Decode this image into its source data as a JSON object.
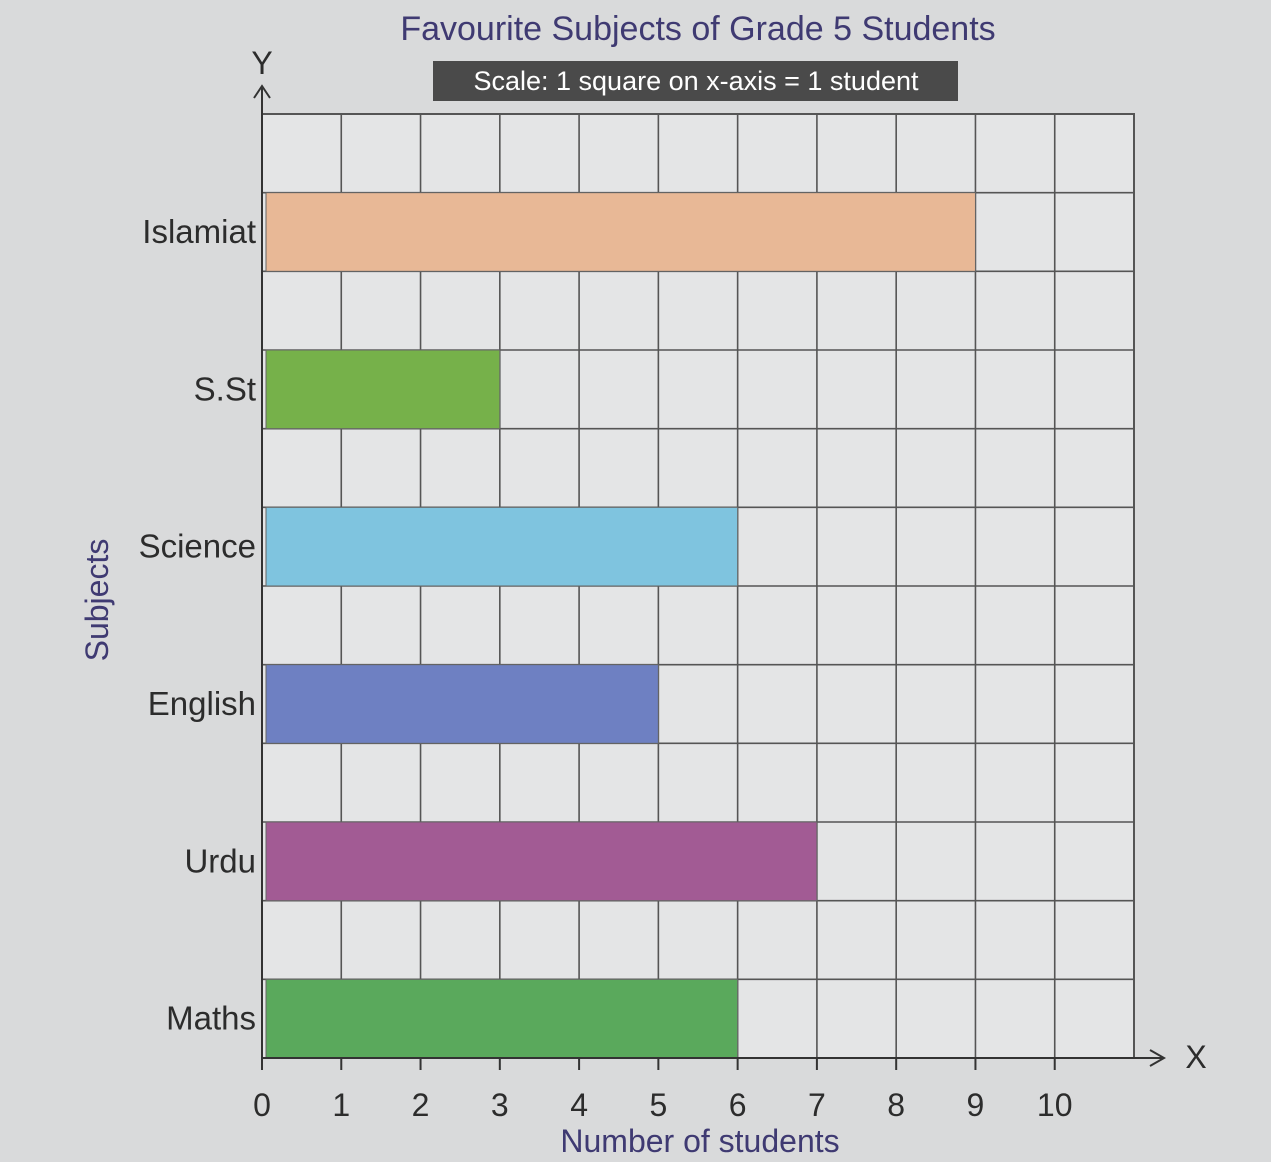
{
  "chart_data": {
    "type": "bar",
    "orientation": "horizontal",
    "title": "Favourite Subjects of Grade 5 Students",
    "subtitle": "Scale: 1 square on x-axis = 1 student",
    "xlabel": "Number of students",
    "ylabel": "Subjects",
    "x_axis_letter": "X",
    "y_axis_letter": "Y",
    "categories": [
      "Islamiat",
      "S.St",
      "Science",
      "English",
      "Urdu",
      "Maths"
    ],
    "values": [
      9,
      3,
      6,
      5,
      7,
      6
    ],
    "colors": [
      "#e8b896",
      "#76b14a",
      "#7fc4df",
      "#6e80c2",
      "#a25b94",
      "#5aa95c"
    ],
    "xticks": [
      0,
      1,
      2,
      3,
      4,
      5,
      6,
      7,
      8,
      9,
      10
    ],
    "xlim": [
      0,
      11
    ],
    "grid": true
  }
}
